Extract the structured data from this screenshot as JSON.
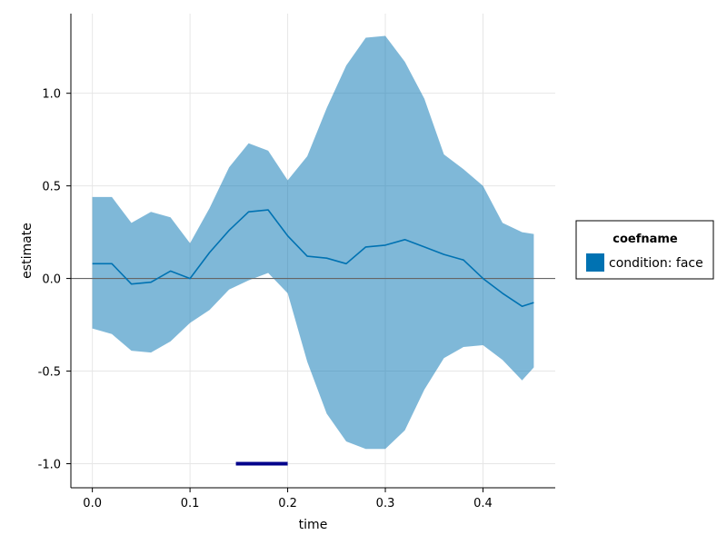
{
  "chart_data": {
    "type": "line",
    "xlabel": "time",
    "ylabel": "estimate",
    "xlim": [
      -0.022,
      0.474
    ],
    "ylim": [
      -1.13,
      1.43
    ],
    "xticks": [
      0.0,
      0.1,
      0.2,
      0.3,
      0.4
    ],
    "xtick_labels": [
      "0.0",
      "0.1",
      "0.2",
      "0.3",
      "0.4"
    ],
    "yticks": [
      -1.0,
      -0.5,
      0.0,
      0.5,
      1.0
    ],
    "ytick_labels": [
      "-1.0",
      "-0.5",
      "0.0",
      "0.5",
      "1.0"
    ],
    "grid": true,
    "zero_line": 0.0,
    "legend": {
      "title": "coefname",
      "placement": "right",
      "entries": [
        {
          "label": "condition: face",
          "color": "#0072b2"
        }
      ]
    },
    "series": [
      {
        "label": "condition: face",
        "color": "#0072b2",
        "band_color": "#0072b2",
        "band_opacity": 0.5,
        "x": [
          0.0,
          0.02,
          0.04,
          0.06,
          0.08,
          0.1,
          0.12,
          0.14,
          0.16,
          0.18,
          0.2,
          0.22,
          0.24,
          0.26,
          0.28,
          0.3,
          0.32,
          0.34,
          0.36,
          0.38,
          0.4,
          0.42,
          0.44,
          0.452
        ],
        "y": [
          0.08,
          0.08,
          -0.03,
          -0.02,
          0.04,
          0.0,
          0.14,
          0.26,
          0.36,
          0.37,
          0.23,
          0.12,
          0.11,
          0.08,
          0.17,
          0.18,
          0.21,
          0.17,
          0.13,
          0.1,
          0.0,
          -0.08,
          -0.15,
          -0.13
        ],
        "lower": [
          -0.27,
          -0.3,
          -0.39,
          -0.4,
          -0.34,
          -0.24,
          -0.17,
          -0.06,
          -0.01,
          0.03,
          -0.08,
          -0.45,
          -0.73,
          -0.88,
          -0.92,
          -0.92,
          -0.82,
          -0.6,
          -0.43,
          -0.37,
          -0.36,
          -0.44,
          -0.55,
          -0.48
        ],
        "upper": [
          0.44,
          0.44,
          0.3,
          0.36,
          0.33,
          0.19,
          0.38,
          0.6,
          0.73,
          0.69,
          0.53,
          0.66,
          0.92,
          1.15,
          1.3,
          1.31,
          1.17,
          0.97,
          0.67,
          0.59,
          0.5,
          0.3,
          0.25,
          0.24
        ]
      }
    ],
    "significance_bar": {
      "x_start": 0.147,
      "x_end": 0.2,
      "y": -1.0,
      "color": "#00008b"
    }
  }
}
